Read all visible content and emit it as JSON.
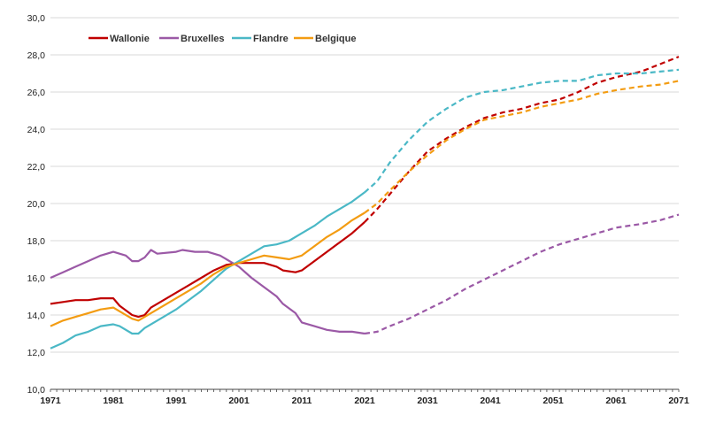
{
  "chart_data": {
    "type": "line",
    "title": "",
    "xlabel": "",
    "ylabel": "",
    "xlim": [
      1971,
      2071
    ],
    "ylim": [
      10,
      30
    ],
    "y_ticks": [
      "10,0",
      "12,0",
      "14,0",
      "16,0",
      "18,0",
      "20,0",
      "22,0",
      "24,0",
      "26,0",
      "28,0",
      "30,0"
    ],
    "x_ticks": [
      "1971",
      "1981",
      "1991",
      "2001",
      "2011",
      "2021",
      "2031",
      "2041",
      "2051",
      "2061",
      "2071"
    ],
    "grid": "horizontal",
    "legend_position": "top-left",
    "projection_start": 2021,
    "series": [
      {
        "name": "Wallonie",
        "color": "#c00000",
        "points": [
          [
            1971,
            14.6
          ],
          [
            1973,
            14.7
          ],
          [
            1975,
            14.8
          ],
          [
            1977,
            14.8
          ],
          [
            1979,
            14.9
          ],
          [
            1981,
            14.9
          ],
          [
            1982,
            14.5
          ],
          [
            1984,
            14.0
          ],
          [
            1985,
            13.9
          ],
          [
            1986,
            14.0
          ],
          [
            1987,
            14.4
          ],
          [
            1989,
            14.8
          ],
          [
            1991,
            15.2
          ],
          [
            1993,
            15.6
          ],
          [
            1995,
            16.0
          ],
          [
            1997,
            16.4
          ],
          [
            1999,
            16.7
          ],
          [
            2001,
            16.8
          ],
          [
            2003,
            16.8
          ],
          [
            2005,
            16.8
          ],
          [
            2007,
            16.6
          ],
          [
            2008,
            16.4
          ],
          [
            2010,
            16.3
          ],
          [
            2011,
            16.4
          ],
          [
            2013,
            16.9
          ],
          [
            2015,
            17.4
          ],
          [
            2017,
            17.9
          ],
          [
            2019,
            18.4
          ],
          [
            2021,
            19.0
          ],
          [
            2023,
            19.7
          ],
          [
            2025,
            20.5
          ],
          [
            2028,
            21.7
          ],
          [
            2031,
            22.8
          ],
          [
            2034,
            23.5
          ],
          [
            2037,
            24.1
          ],
          [
            2040,
            24.6
          ],
          [
            2043,
            24.9
          ],
          [
            2046,
            25.1
          ],
          [
            2049,
            25.4
          ],
          [
            2052,
            25.6
          ],
          [
            2055,
            26.0
          ],
          [
            2058,
            26.5
          ],
          [
            2061,
            26.8
          ],
          [
            2065,
            27.1
          ],
          [
            2068,
            27.5
          ],
          [
            2071,
            27.9
          ]
        ]
      },
      {
        "name": "Bruxelles",
        "color": "#9b59a6",
        "points": [
          [
            1971,
            16.0
          ],
          [
            1973,
            16.3
          ],
          [
            1975,
            16.6
          ],
          [
            1977,
            16.9
          ],
          [
            1979,
            17.2
          ],
          [
            1981,
            17.4
          ],
          [
            1983,
            17.2
          ],
          [
            1984,
            16.9
          ],
          [
            1985,
            16.9
          ],
          [
            1986,
            17.1
          ],
          [
            1987,
            17.5
          ],
          [
            1988,
            17.3
          ],
          [
            1991,
            17.4
          ],
          [
            1992,
            17.5
          ],
          [
            1994,
            17.4
          ],
          [
            1996,
            17.4
          ],
          [
            1998,
            17.2
          ],
          [
            2000,
            16.8
          ],
          [
            2001,
            16.6
          ],
          [
            2003,
            16.0
          ],
          [
            2005,
            15.5
          ],
          [
            2007,
            15.0
          ],
          [
            2008,
            14.6
          ],
          [
            2010,
            14.1
          ],
          [
            2011,
            13.6
          ],
          [
            2013,
            13.4
          ],
          [
            2015,
            13.2
          ],
          [
            2017,
            13.1
          ],
          [
            2019,
            13.1
          ],
          [
            2021,
            13.0
          ],
          [
            2023,
            13.1
          ],
          [
            2025,
            13.4
          ],
          [
            2028,
            13.8
          ],
          [
            2031,
            14.3
          ],
          [
            2034,
            14.8
          ],
          [
            2037,
            15.4
          ],
          [
            2040,
            15.9
          ],
          [
            2043,
            16.4
          ],
          [
            2046,
            16.9
          ],
          [
            2049,
            17.4
          ],
          [
            2052,
            17.8
          ],
          [
            2055,
            18.1
          ],
          [
            2058,
            18.4
          ],
          [
            2061,
            18.7
          ],
          [
            2065,
            18.9
          ],
          [
            2068,
            19.1
          ],
          [
            2071,
            19.4
          ]
        ]
      },
      {
        "name": "Flandre",
        "color": "#4ab8c6",
        "points": [
          [
            1971,
            12.2
          ],
          [
            1973,
            12.5
          ],
          [
            1975,
            12.9
          ],
          [
            1977,
            13.1
          ],
          [
            1979,
            13.4
          ],
          [
            1981,
            13.5
          ],
          [
            1982,
            13.4
          ],
          [
            1984,
            13.0
          ],
          [
            1985,
            13.0
          ],
          [
            1986,
            13.3
          ],
          [
            1988,
            13.7
          ],
          [
            1991,
            14.3
          ],
          [
            1993,
            14.8
          ],
          [
            1995,
            15.3
          ],
          [
            1997,
            15.9
          ],
          [
            1999,
            16.5
          ],
          [
            2001,
            16.9
          ],
          [
            2003,
            17.3
          ],
          [
            2005,
            17.7
          ],
          [
            2007,
            17.8
          ],
          [
            2009,
            18.0
          ],
          [
            2011,
            18.4
          ],
          [
            2013,
            18.8
          ],
          [
            2015,
            19.3
          ],
          [
            2017,
            19.7
          ],
          [
            2019,
            20.1
          ],
          [
            2021,
            20.6
          ],
          [
            2023,
            21.2
          ],
          [
            2025,
            22.2
          ],
          [
            2028,
            23.4
          ],
          [
            2031,
            24.4
          ],
          [
            2034,
            25.1
          ],
          [
            2037,
            25.7
          ],
          [
            2040,
            26.0
          ],
          [
            2043,
            26.1
          ],
          [
            2046,
            26.3
          ],
          [
            2049,
            26.5
          ],
          [
            2052,
            26.6
          ],
          [
            2055,
            26.6
          ],
          [
            2058,
            26.9
          ],
          [
            2061,
            27.0
          ],
          [
            2065,
            27.0
          ],
          [
            2068,
            27.1
          ],
          [
            2071,
            27.2
          ]
        ]
      },
      {
        "name": "Belgique",
        "color": "#f39c12",
        "points": [
          [
            1971,
            13.4
          ],
          [
            1973,
            13.7
          ],
          [
            1975,
            13.9
          ],
          [
            1977,
            14.1
          ],
          [
            1979,
            14.3
          ],
          [
            1981,
            14.4
          ],
          [
            1982,
            14.2
          ],
          [
            1984,
            13.8
          ],
          [
            1985,
            13.7
          ],
          [
            1986,
            13.9
          ],
          [
            1988,
            14.3
          ],
          [
            1991,
            14.9
          ],
          [
            1993,
            15.3
          ],
          [
            1995,
            15.7
          ],
          [
            1997,
            16.2
          ],
          [
            1999,
            16.6
          ],
          [
            2001,
            16.8
          ],
          [
            2003,
            17.0
          ],
          [
            2005,
            17.2
          ],
          [
            2007,
            17.1
          ],
          [
            2009,
            17.0
          ],
          [
            2011,
            17.2
          ],
          [
            2013,
            17.7
          ],
          [
            2015,
            18.2
          ],
          [
            2017,
            18.6
          ],
          [
            2019,
            19.1
          ],
          [
            2021,
            19.5
          ],
          [
            2023,
            20.0
          ],
          [
            2025,
            20.7
          ],
          [
            2028,
            21.7
          ],
          [
            2031,
            22.6
          ],
          [
            2034,
            23.4
          ],
          [
            2037,
            24.0
          ],
          [
            2040,
            24.5
          ],
          [
            2043,
            24.7
          ],
          [
            2046,
            24.9
          ],
          [
            2049,
            25.2
          ],
          [
            2052,
            25.4
          ],
          [
            2055,
            25.6
          ],
          [
            2058,
            25.9
          ],
          [
            2061,
            26.1
          ],
          [
            2065,
            26.3
          ],
          [
            2068,
            26.4
          ],
          [
            2071,
            26.6
          ]
        ]
      }
    ]
  }
}
